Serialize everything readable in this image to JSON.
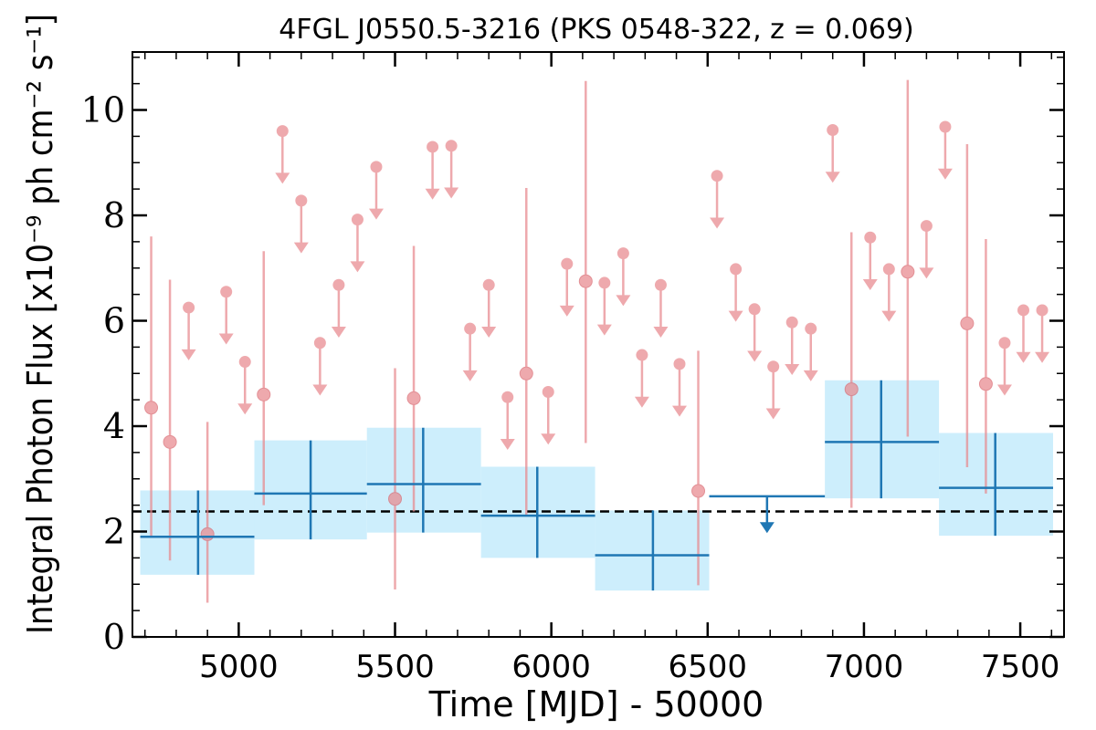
{
  "chart_data": {
    "type": "scatter",
    "title": "4FGL J0550.5-3216 (PKS 0548-322, z = 0.069)",
    "xlabel": "Time [MJD] - 50000",
    "ylabel": "Integral Photon Flux [x10⁻⁹ ph cm⁻² s⁻¹]",
    "xlim": [
      4660,
      7640
    ],
    "ylim": [
      0,
      11.1
    ],
    "xticks": [
      5000,
      5500,
      6000,
      6500,
      7000,
      7500
    ],
    "yticks": [
      0,
      2,
      4,
      6,
      8,
      10
    ],
    "grid": false,
    "reference_line": {
      "y": 2.38,
      "style": "dashed",
      "color": "#000000"
    },
    "colors": {
      "fine": "#e8898e",
      "coarse": "#1f77b4",
      "band": "#cdeefc"
    },
    "fine_bins": {
      "measurements": [
        {
          "x": 4720,
          "y": 4.35,
          "lo": 1.9,
          "hi": 7.6
        },
        {
          "x": 4780,
          "y": 3.7,
          "lo": 1.45,
          "hi": 6.78
        },
        {
          "x": 4900,
          "y": 1.95,
          "lo": 0.65,
          "hi": 4.08
        },
        {
          "x": 5080,
          "y": 4.6,
          "lo": 2.5,
          "hi": 7.32
        },
        {
          "x": 5500,
          "y": 2.62,
          "lo": 0.9,
          "hi": 5.1
        },
        {
          "x": 5560,
          "y": 4.53,
          "lo": 2.38,
          "hi": 7.42
        },
        {
          "x": 5920,
          "y": 5.0,
          "lo": 2.3,
          "hi": 8.52
        },
        {
          "x": 6110,
          "y": 6.75,
          "lo": 3.68,
          "hi": 10.55
        },
        {
          "x": 6470,
          "y": 2.77,
          "lo": 0.98,
          "hi": 5.43
        },
        {
          "x": 6960,
          "y": 4.7,
          "lo": 2.45,
          "hi": 7.68
        },
        {
          "x": 7140,
          "y": 6.93,
          "lo": 3.8,
          "hi": 10.57
        },
        {
          "x": 7330,
          "y": 5.95,
          "lo": 3.22,
          "hi": 9.35
        },
        {
          "x": 7390,
          "y": 4.8,
          "lo": 2.72,
          "hi": 7.55
        }
      ],
      "upper_limits": [
        {
          "x": 4840,
          "y": 6.25
        },
        {
          "x": 4960,
          "y": 6.55
        },
        {
          "x": 5020,
          "y": 5.22
        },
        {
          "x": 5140,
          "y": 9.6
        },
        {
          "x": 5200,
          "y": 8.28
        },
        {
          "x": 5260,
          "y": 5.58
        },
        {
          "x": 5320,
          "y": 6.68
        },
        {
          "x": 5380,
          "y": 7.92
        },
        {
          "x": 5440,
          "y": 8.92
        },
        {
          "x": 5620,
          "y": 9.3
        },
        {
          "x": 5680,
          "y": 9.32
        },
        {
          "x": 5740,
          "y": 5.85
        },
        {
          "x": 5800,
          "y": 6.68
        },
        {
          "x": 5860,
          "y": 4.55
        },
        {
          "x": 5990,
          "y": 4.65
        },
        {
          "x": 6050,
          "y": 7.08
        },
        {
          "x": 6170,
          "y": 6.72
        },
        {
          "x": 6230,
          "y": 7.28
        },
        {
          "x": 6290,
          "y": 5.35
        },
        {
          "x": 6350,
          "y": 6.68
        },
        {
          "x": 6410,
          "y": 5.18
        },
        {
          "x": 6530,
          "y": 8.75
        },
        {
          "x": 6590,
          "y": 6.98
        },
        {
          "x": 6650,
          "y": 6.22
        },
        {
          "x": 6710,
          "y": 5.13
        },
        {
          "x": 6770,
          "y": 5.97
        },
        {
          "x": 6830,
          "y": 5.85
        },
        {
          "x": 6900,
          "y": 9.62
        },
        {
          "x": 7020,
          "y": 7.58
        },
        {
          "x": 7080,
          "y": 6.98
        },
        {
          "x": 7200,
          "y": 7.8
        },
        {
          "x": 7260,
          "y": 9.68
        },
        {
          "x": 7450,
          "y": 5.58
        },
        {
          "x": 7510,
          "y": 6.2
        },
        {
          "x": 7570,
          "y": 6.2
        }
      ]
    },
    "coarse_bins": {
      "measurements": [
        {
          "x": 4870,
          "x_lo": 4685,
          "x_hi": 5050,
          "y": 1.9,
          "lo": 1.18,
          "hi": 2.78
        },
        {
          "x": 5230,
          "x_lo": 5050,
          "x_hi": 5410,
          "y": 2.72,
          "lo": 1.85,
          "hi": 3.73
        },
        {
          "x": 5590,
          "x_lo": 5410,
          "x_hi": 5775,
          "y": 2.9,
          "lo": 1.98,
          "hi": 3.97
        },
        {
          "x": 5955,
          "x_lo": 5775,
          "x_hi": 6140,
          "y": 2.3,
          "lo": 1.5,
          "hi": 3.23
        },
        {
          "x": 6325,
          "x_lo": 6140,
          "x_hi": 6505,
          "y": 1.55,
          "lo": 0.88,
          "hi": 2.4
        },
        {
          "x": 7055,
          "x_lo": 6875,
          "x_hi": 7240,
          "y": 3.7,
          "lo": 2.63,
          "hi": 4.87
        },
        {
          "x": 7420,
          "x_lo": 7240,
          "x_hi": 7605,
          "y": 2.83,
          "lo": 1.92,
          "hi": 3.87
        }
      ],
      "upper_limits": [
        {
          "x": 6690,
          "x_lo": 6505,
          "x_hi": 6875,
          "y": 2.67
        }
      ]
    }
  }
}
